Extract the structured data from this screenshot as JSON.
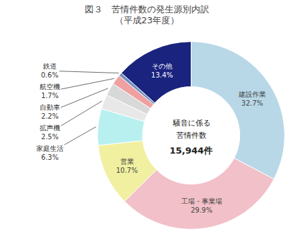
{
  "chart_data": {
    "type": "pie",
    "title": "図３　苦情件数の発生源別内訳",
    "subtitle": "（平成23年度）",
    "categories": [
      "建設作業",
      "工場・事業場",
      "営業",
      "家庭生活",
      "拡声機",
      "自動車",
      "航空機",
      "鉄道",
      "その他"
    ],
    "values": [
      32.7,
      29.9,
      10.7,
      6.3,
      2.5,
      2.2,
      1.7,
      0.6,
      13.4
    ],
    "colors": [
      "#b8d8e8",
      "#f2c0c8",
      "#f0f0a0",
      "#b8f0f0",
      "#e8e8e8",
      "#d8d8d8",
      "#f0a0a0",
      "#7090c0",
      "#1a237e"
    ],
    "data_labels": true,
    "value_labels": [
      "建設作業\n32.7%",
      "工場・事業場\n29.9%",
      "営業\n10.7%",
      "家庭生活\n6.3%",
      "拡声機\n2.5%",
      "自動車\n2.2%",
      "航空機\n1.7%",
      "鉄道\n0.6%",
      "その他\n13.4%"
    ],
    "annotations": [
      "騒音に係る",
      "苦情件数",
      "15,944件"
    ]
  }
}
